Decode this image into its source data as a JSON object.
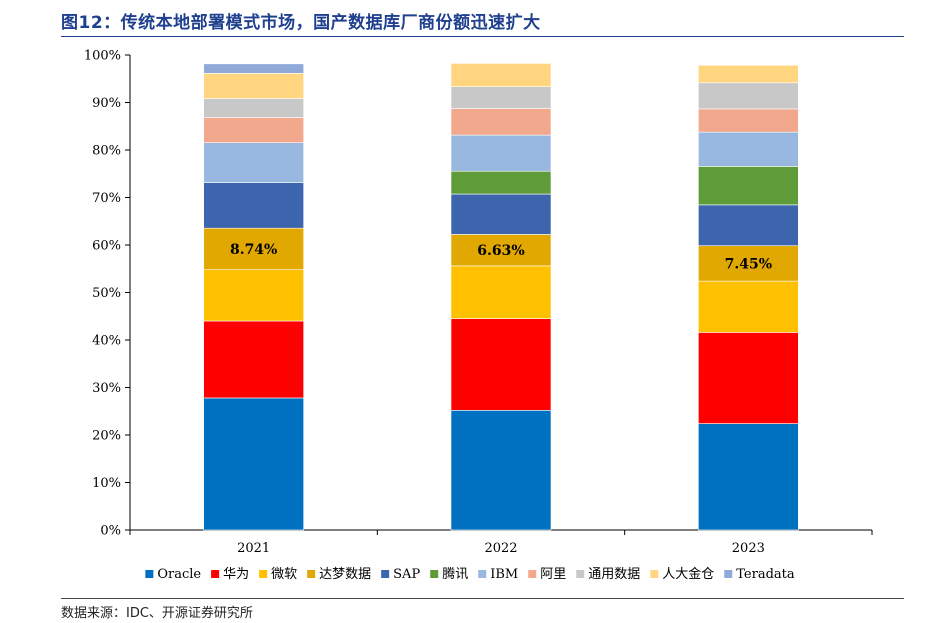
{
  "title": "图12：传统本地部署模式市场，国产数据库厂商份额迅速扩大",
  "source": "数据来源：IDC、开源证券研究所",
  "chart_data": {
    "type": "bar",
    "stacked": true,
    "categories": [
      "2021",
      "2022",
      "2023"
    ],
    "ylim": [
      0,
      100
    ],
    "yticks": [
      "0%",
      "10%",
      "20%",
      "30%",
      "40%",
      "50%",
      "60%",
      "70%",
      "80%",
      "90%",
      "100%"
    ],
    "legend_position": "bottom",
    "series": [
      {
        "name": "Oracle",
        "color": "#0070c0",
        "values": [
          27.8,
          25.2,
          22.4
        ]
      },
      {
        "name": "华为",
        "color": "#ff0000",
        "values": [
          16.2,
          19.3,
          19.2
        ]
      },
      {
        "name": "微软",
        "color": "#ffc000",
        "values": [
          10.8,
          11.1,
          10.8
        ]
      },
      {
        "name": "达梦数据",
        "color": "#e0a800",
        "values": [
          8.74,
          6.63,
          7.45
        ]
      },
      {
        "name": "SAP",
        "color": "#3c65ad",
        "values": [
          9.6,
          8.5,
          8.6
        ]
      },
      {
        "name": "腾讯",
        "color": "#5e9c3a",
        "values": [
          0.0,
          4.8,
          8.1
        ]
      },
      {
        "name": "IBM",
        "color": "#99b8e0",
        "values": [
          8.4,
          7.6,
          7.2
        ]
      },
      {
        "name": "阿里",
        "color": "#f2a88c",
        "values": [
          5.3,
          5.6,
          4.9
        ]
      },
      {
        "name": "通用数据",
        "color": "#c8c8c8",
        "values": [
          4.0,
          4.6,
          5.5
        ]
      },
      {
        "name": "人大金仓",
        "color": "#ffd580",
        "values": [
          5.3,
          4.9,
          3.7
        ]
      },
      {
        "name": "Teradata",
        "color": "#8fa9d8",
        "values": [
          2.0,
          0.0,
          0.0
        ]
      }
    ],
    "annotations": [
      {
        "category": "2021",
        "series": "达梦数据",
        "text": "8.74%"
      },
      {
        "category": "2022",
        "series": "达梦数据",
        "text": "6.63%"
      },
      {
        "category": "2023",
        "series": "达梦数据",
        "text": "7.45%"
      }
    ]
  }
}
